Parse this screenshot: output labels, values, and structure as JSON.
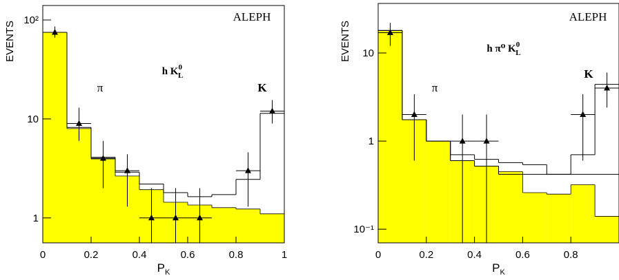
{
  "chart_data": [
    {
      "type": "histogram",
      "ylabel": "EVENTS",
      "xlabel": "P",
      "xlabel_sub": "K",
      "annotations": [
        {
          "text": "ALEPH"
        },
        {
          "text": "π"
        },
        {
          "text": "h K",
          "sub": "L",
          "sup": "0"
        },
        {
          "text": "K"
        }
      ],
      "bins": [
        0,
        0.1,
        0.2,
        0.3,
        0.4,
        0.5,
        0.6,
        0.7,
        0.8,
        0.9,
        1.0
      ],
      "series": [
        {
          "color": "#ffff00",
          "fill": true,
          "values": [
            75,
            8.0,
            3.95,
            2.65,
            1.93,
            1.44,
            1.35,
            1.27,
            1.23,
            1.1
          ]
        },
        {
          "color": "#000000",
          "fill": false,
          "values": [
            75,
            8.2,
            4.1,
            2.9,
            2.2,
            1.8,
            1.64,
            1.72,
            2.45,
            11.4
          ]
        }
      ],
      "points": {
        "color": "#000000",
        "x": [
          0.05,
          0.15,
          0.25,
          0.35,
          0.45,
          0.55,
          0.65,
          0.85,
          0.95
        ],
        "values": [
          75,
          9,
          4,
          3,
          1,
          1,
          1,
          3,
          12
        ],
        "err_high": [
          11,
          4,
          2,
          1.4,
          1,
          1,
          1,
          1.6,
          3.5
        ],
        "err_low": [
          8.7,
          3,
          2,
          1.7,
          1,
          1,
          1,
          1.7,
          3
        ],
        "xerr": 0.05
      },
      "log_y": true,
      "xlim": [
        0,
        1
      ],
      "ylim": [
        0.56,
        140
      ],
      "xticks": [
        0,
        0.2,
        0.4,
        0.6,
        0.8,
        1
      ],
      "yticks": [
        1,
        10,
        {
          "value": 100,
          "label": "10²"
        }
      ]
    },
    {
      "type": "histogram",
      "ylabel": "EVENTS",
      "xlabel": "P",
      "xlabel_sub": "K",
      "annotations": [
        {
          "text": "ALEPH"
        },
        {
          "text": "π"
        },
        {
          "text": "h π⁰ K",
          "sub": "L",
          "sup": "0"
        },
        {
          "text": "K"
        }
      ],
      "bins": [
        0,
        0.1,
        0.2,
        0.3,
        0.4,
        0.5,
        0.6,
        0.7,
        0.8,
        0.9,
        1.0
      ],
      "series": [
        {
          "color": "#ffff00",
          "fill": true,
          "values": [
            18,
            1.75,
            1.0,
            0.6,
            0.52,
            0.45,
            0.26,
            0.25,
            0.32,
            0.14
          ]
        },
        {
          "color": "#000000",
          "fill": false,
          "values": [
            18,
            1.75,
            1.0,
            0.6,
            0.52,
            0.42,
            0.42,
            0.42,
            0.42,
            0.42
          ]
        },
        {
          "color": "#000000",
          "fill": false,
          "values": [
            18,
            1.75,
            1.0,
            0.7,
            0.62,
            0.57,
            0.54,
            0.42,
            0.7,
            4.4
          ]
        }
      ],
      "points": {
        "color": "#000000",
        "x": [
          0.05,
          0.15,
          0.35,
          0.45,
          0.85,
          0.95
        ],
        "values": [
          17,
          2,
          1,
          1,
          2,
          4
        ],
        "err_high": [
          5,
          1.4,
          1,
          1,
          1.4,
          2
        ],
        "err_low": [
          5,
          1.4,
          1,
          1,
          1.4,
          1.6
        ],
        "xerr": 0.05
      },
      "log_y": true,
      "xlim": [
        0,
        1
      ],
      "ylim": [
        0.07,
        36.5
      ],
      "xticks": [
        0,
        0.2,
        0.4,
        0.6,
        0.8
      ],
      "yticks": [
        {
          "value": 0.1,
          "label": "10⁻¹"
        },
        1,
        10
      ]
    }
  ]
}
